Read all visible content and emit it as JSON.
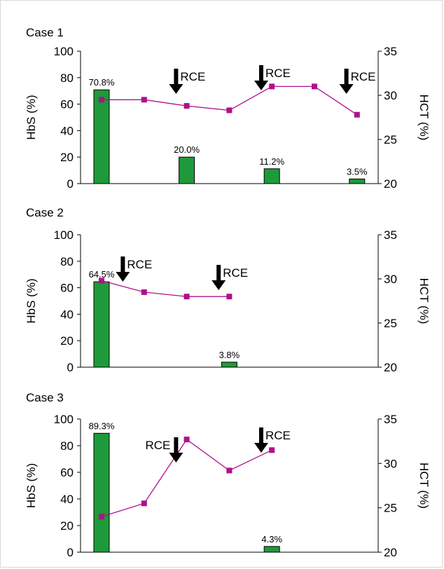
{
  "chart_data": [
    {
      "type": "bar",
      "title": "Case 1",
      "ylabel": "HbS (%)",
      "y2label": "HCT (%)",
      "ylim": [
        0,
        100
      ],
      "y2lim": [
        20,
        35
      ],
      "yticks": [
        "0",
        "20",
        "40",
        "60",
        "80",
        "100"
      ],
      "y2ticks": [
        "20",
        "25",
        "30",
        "35"
      ],
      "slots": 7,
      "series": [
        {
          "name": "HbS",
          "type": "bar",
          "values": [
            70.8,
            null,
            20.0,
            null,
            11.2,
            null,
            3.5
          ],
          "labels": [
            "70.8%",
            "",
            "20.0%",
            "",
            "11.2%",
            "",
            "3.5%"
          ]
        },
        {
          "name": "HCT",
          "type": "line",
          "axis": "right",
          "values": [
            29.5,
            29.5,
            28.8,
            28.3,
            31.0,
            31.0,
            27.8
          ]
        }
      ],
      "annotations": [
        {
          "text": "RCE",
          "slot": 1.75
        },
        {
          "text": "RCE",
          "slot": 3.75
        },
        {
          "text": "RCE",
          "slot": 5.75
        }
      ]
    },
    {
      "type": "bar",
      "title": "Case 2",
      "ylabel": "HbS (%)",
      "y2label": "HCT (%)",
      "ylim": [
        0,
        100
      ],
      "y2lim": [
        20,
        35
      ],
      "yticks": [
        "0",
        "20",
        "40",
        "60",
        "80",
        "100"
      ],
      "y2ticks": [
        "20",
        "25",
        "30",
        "35"
      ],
      "slots": 7,
      "series": [
        {
          "name": "HbS",
          "type": "bar",
          "values": [
            64.5,
            null,
            null,
            3.8,
            null,
            null,
            null
          ],
          "labels": [
            "64.5%",
            "",
            "",
            "3.8%",
            "",
            "",
            ""
          ]
        },
        {
          "name": "HCT",
          "type": "line",
          "axis": "right",
          "values": [
            29.8,
            28.5,
            28.0,
            28.0,
            null,
            null,
            null
          ]
        }
      ],
      "annotations": [
        {
          "text": "RCE",
          "slot": 0.5
        },
        {
          "text": "RCE",
          "slot": 2.75
        }
      ]
    },
    {
      "type": "bar",
      "title": "Case 3",
      "ylabel": "HbS (%)",
      "y2label": "HCT (%)",
      "ylim": [
        0,
        100
      ],
      "y2lim": [
        20,
        35
      ],
      "yticks": [
        "0",
        "20",
        "40",
        "60",
        "80",
        "100"
      ],
      "y2ticks": [
        "20",
        "25",
        "30",
        "35"
      ],
      "slots": 7,
      "series": [
        {
          "name": "HbS",
          "type": "bar",
          "values": [
            89.3,
            null,
            null,
            null,
            4.3,
            null,
            null
          ],
          "labels": [
            "89.3%",
            "",
            "",
            "",
            "4.3%",
            "",
            ""
          ]
        },
        {
          "name": "HCT",
          "type": "line",
          "axis": "right",
          "values": [
            24.0,
            25.5,
            32.7,
            29.2,
            31.5,
            null,
            null
          ]
        }
      ],
      "annotations": [
        {
          "text": "RCE",
          "slot": 1.75,
          "label_side": "left"
        },
        {
          "text": "RCE",
          "slot": 3.75
        }
      ]
    }
  ]
}
